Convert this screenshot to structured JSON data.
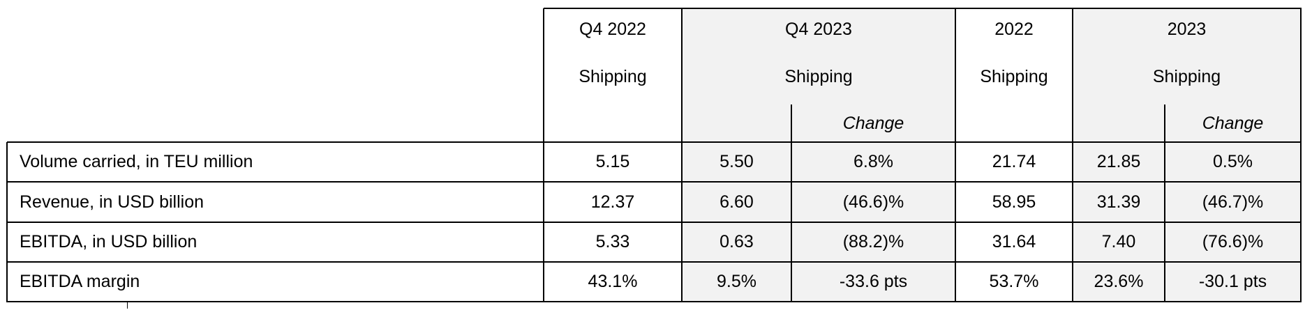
{
  "table": {
    "groups": [
      {
        "period": "Q4 2022",
        "segment": "Shipping"
      },
      {
        "period": "Q4 2023",
        "segment": "Shipping",
        "change": "Change"
      },
      {
        "period": "2022",
        "segment": "Shipping"
      },
      {
        "period": "2023",
        "segment": "Shipping",
        "change": "Change"
      }
    ],
    "rows": [
      {
        "label": "Volume carried, in TEU million",
        "values": [
          "5.15",
          "5.50",
          "6.8%",
          "21.74",
          "21.85",
          "0.5%"
        ]
      },
      {
        "label": "Revenue, in USD billion",
        "values": [
          "12.37",
          "6.60",
          "(46.6)%",
          "58.95",
          "31.39",
          "(46.7)%"
        ]
      },
      {
        "label": "EBITDA, in USD billion",
        "values": [
          "5.33",
          "0.63",
          "(88.2)%",
          "31.64",
          "7.40",
          "(76.6)%"
        ]
      },
      {
        "label": "EBITDA margin",
        "values": [
          "43.1%",
          "9.5%",
          "-33.6 pts",
          "53.7%",
          "23.6%",
          "-30.1 pts"
        ]
      }
    ]
  }
}
